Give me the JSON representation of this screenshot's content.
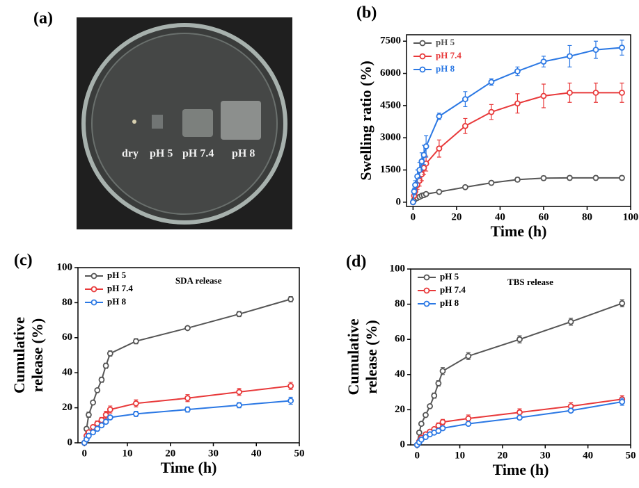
{
  "photo": {
    "label": "(a)",
    "captions": [
      "dry",
      "pH 5",
      "pH 7.4",
      "pH 8"
    ]
  },
  "chart_data": [
    {
      "type": "line",
      "label": "(b)",
      "xlabel": "Time (h)",
      "ylabel": [
        "Swelling ratio (%)"
      ],
      "xlim": [
        -3,
        100
      ],
      "ylim": [
        -200,
        7800
      ],
      "xticks": [
        0,
        20,
        40,
        60,
        80,
        100
      ],
      "yticks": [
        0,
        1500,
        3000,
        4500,
        6000,
        7500
      ],
      "legend": "upper left",
      "legend_text_colored": true,
      "x": [
        0,
        0.5,
        1,
        2,
        3,
        4,
        5,
        6,
        12,
        24,
        36,
        48,
        60,
        72,
        84,
        96
      ],
      "series": [
        {
          "name": "pH 5",
          "color": "#555555",
          "values": [
            0,
            100,
            150,
            200,
            250,
            300,
            330,
            380,
            480,
            700,
            900,
            1050,
            1120,
            1130,
            1130,
            1130
          ],
          "errors": [
            20,
            30,
            30,
            40,
            40,
            40,
            50,
            50,
            60,
            80,
            90,
            100,
            100,
            100,
            100,
            100
          ]
        },
        {
          "name": "pH 7.4",
          "color": "#e8393a",
          "values": [
            0,
            300,
            500,
            800,
            1000,
            1300,
            1600,
            1800,
            2500,
            3550,
            4200,
            4600,
            4950,
            5100,
            5100,
            5100
          ],
          "errors": [
            50,
            100,
            150,
            200,
            250,
            300,
            300,
            350,
            400,
            350,
            350,
            450,
            550,
            450,
            450,
            450
          ]
        },
        {
          "name": "pH 8",
          "color": "#2b78e4",
          "values": [
            0,
            500,
            800,
            1200,
            1500,
            1900,
            2200,
            2600,
            4000,
            4800,
            5600,
            6100,
            6550,
            6800,
            7100,
            7200
          ],
          "errors": [
            50,
            150,
            200,
            300,
            350,
            400,
            450,
            500,
            150,
            350,
            150,
            200,
            250,
            500,
            400,
            350
          ]
        }
      ]
    },
    {
      "type": "line",
      "label": "(c)",
      "xlabel": "Time (h)",
      "ylabel": [
        "Cumulative",
        "release (%)"
      ],
      "annotation": "SDA release",
      "xlim": [
        -1.5,
        50
      ],
      "ylim": [
        0,
        100
      ],
      "xticks": [
        0,
        10,
        20,
        30,
        40,
        50
      ],
      "yticks": [
        0,
        20,
        40,
        60,
        80,
        100
      ],
      "legend": "upper left",
      "legend_text_colored": false,
      "x": [
        0,
        0.5,
        1,
        2,
        3,
        4,
        5,
        6,
        12,
        24,
        36,
        48
      ],
      "series": [
        {
          "name": "pH 5",
          "color": "#555555",
          "values": [
            0,
            8,
            16,
            23,
            30,
            36,
            44,
            51,
            58,
            65.5,
            73.5,
            82
          ],
          "errors": [
            0.5,
            1,
            1.5,
            1,
            1,
            1.5,
            1.5,
            1.5,
            1.5,
            1,
            1.5,
            1.5
          ]
        },
        {
          "name": "pH 7.4",
          "color": "#e8393a",
          "values": [
            0,
            4,
            6,
            9,
            11,
            13,
            16,
            19,
            22.5,
            25.5,
            29,
            32.5
          ],
          "errors": [
            0.5,
            1,
            1,
            1,
            1.5,
            1.5,
            2,
            2,
            2,
            2,
            2,
            2
          ]
        },
        {
          "name": "pH 8",
          "color": "#2b78e4",
          "values": [
            0,
            2,
            4,
            6,
            8,
            10,
            12,
            14.5,
            16.5,
            19,
            21.5,
            24
          ],
          "errors": [
            0.5,
            1,
            1,
            1,
            1,
            1,
            1,
            1,
            1.5,
            1.5,
            1.5,
            2
          ]
        }
      ]
    },
    {
      "type": "line",
      "label": "(d)",
      "xlabel": "Time (h)",
      "ylabel": [
        "Cumulative",
        "release (%)"
      ],
      "annotation": "TBS release",
      "xlim": [
        -1.5,
        50
      ],
      "ylim": [
        0,
        100
      ],
      "xticks": [
        0,
        10,
        20,
        30,
        40,
        50
      ],
      "yticks": [
        0,
        20,
        40,
        60,
        80,
        100
      ],
      "legend": "upper left",
      "legend_text_colored": false,
      "x": [
        0,
        0.5,
        1,
        2,
        3,
        4,
        5,
        6,
        12,
        24,
        36,
        48
      ],
      "series": [
        {
          "name": "pH 5",
          "color": "#555555",
          "values": [
            0,
            7,
            12,
            17,
            22,
            28,
            35,
            42,
            50.5,
            60,
            70,
            80.5
          ],
          "errors": [
            0.5,
            1,
            1,
            1,
            1,
            1.5,
            1.5,
            2,
            2,
            2,
            2,
            2
          ]
        },
        {
          "name": "pH 7.4",
          "color": "#e8393a",
          "values": [
            0,
            2,
            4,
            6,
            7.5,
            9,
            11,
            13,
            15,
            18.5,
            22,
            26
          ],
          "errors": [
            0.5,
            1,
            1,
            1,
            1,
            1,
            1.5,
            1.5,
            2,
            2,
            2,
            2
          ]
        },
        {
          "name": "pH 8",
          "color": "#2b78e4",
          "values": [
            0,
            1.5,
            3,
            4.5,
            6,
            7,
            8,
            9.5,
            12,
            15.5,
            19.5,
            24.5
          ],
          "errors": [
            0.5,
            0.5,
            0.5,
            1,
            1,
            1,
            1,
            1,
            1,
            1,
            1,
            2
          ]
        }
      ]
    }
  ]
}
